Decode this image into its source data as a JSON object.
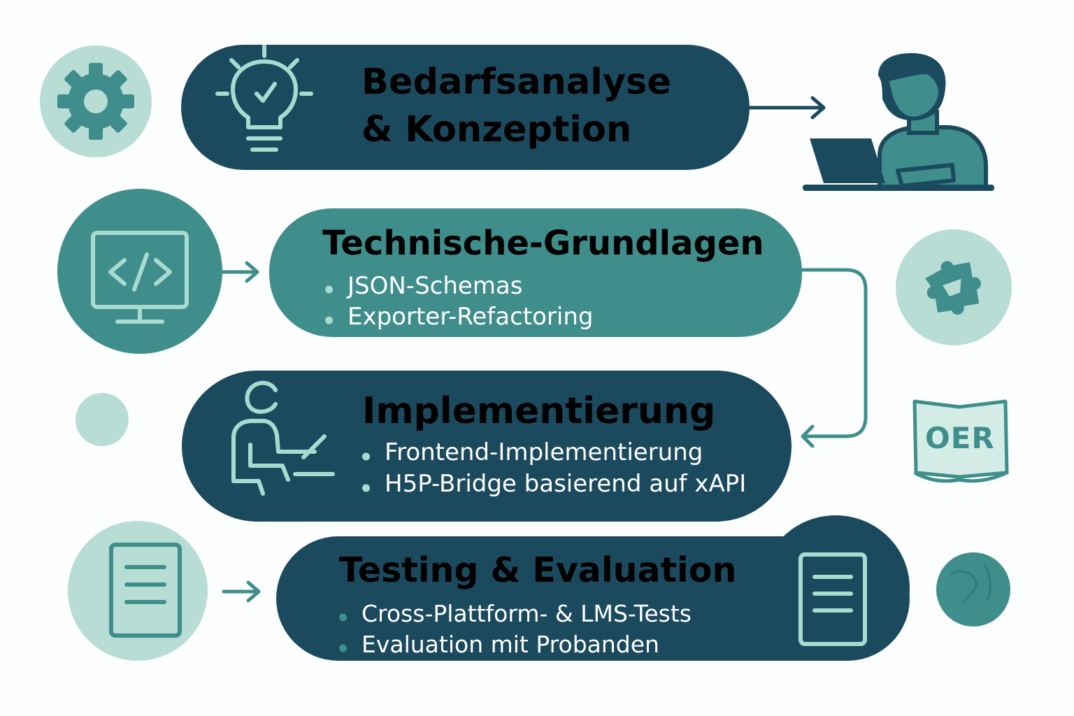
{
  "colors": {
    "dark": "#1b4a5e",
    "teal": "#3f8e8c",
    "light": "#b7ddd5",
    "line_light": "#a8dbcf",
    "background": "#fdfefe"
  },
  "steps": [
    {
      "title_line1": "Bedarfsanalyse",
      "title_line2": "& Konzeption",
      "icon": "lightbulb-check-icon"
    },
    {
      "title": "Technische-Grundlagen",
      "bullets": [
        "JSON-Schemas",
        "Exporter-Refactoring"
      ],
      "icon": "monitor-code-icon"
    },
    {
      "title": "Implementierung",
      "bullets": [
        "Frontend-Implementierung",
        "H5P-Bridge basierend auf xAPI"
      ],
      "icon": "person-at-laptop-icon"
    },
    {
      "title": "Testing & Evaluation",
      "bullets": [
        "Cross-Plattform- & LMS-Tests",
        "Evaluation mit Probanden"
      ],
      "icon": "document-icon"
    }
  ],
  "oer": {
    "label": "OER",
    "icon": "open-book-icon"
  },
  "decor_icons": [
    "gear-icon",
    "developer-at-laptop-icon",
    "puzzle-icon",
    "globe-icon"
  ]
}
